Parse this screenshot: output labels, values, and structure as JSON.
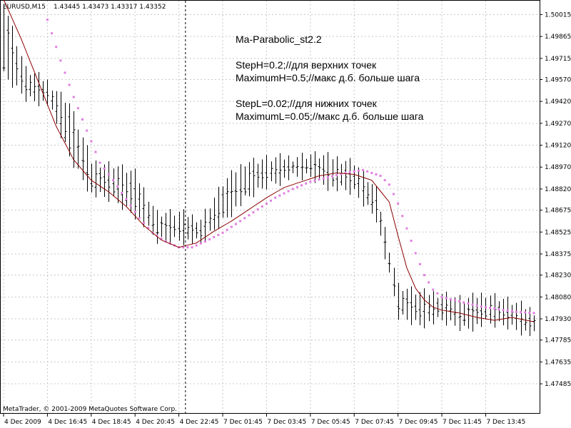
{
  "header": {
    "symbol": "EURUSD,M15",
    "ohlc": "1.43445 1.43473 1.43317 1.43352"
  },
  "copyright": "MetaTrader, © 2001-2009 MetaQuotes Software Corp.",
  "annotation": {
    "title": "Ma-Parabolic_st2.2",
    "lines": [
      "StepH=0.2;//для верхних точек",
      "MaximumH=0.5;//макс д.б. больше шага",
      "",
      "StepL=0.02;//для нижних точек",
      "MaximumL=0.05;//макс д.б. больше шага"
    ]
  },
  "colors": {
    "background": "#ffffff",
    "grid": "#c8c8c8",
    "bars": "#000000",
    "ma_line": "#8b0000",
    "parabolic_dots": "#e07ee0",
    "separator": "#000000"
  },
  "chart_data": {
    "type": "line",
    "ylim": [
      1.4728,
      1.5011
    ],
    "y_ticks": [
      "1.50015",
      "1.49865",
      "1.49715",
      "1.49570",
      "1.49420",
      "1.49270",
      "1.49120",
      "1.48970",
      "1.48820",
      "1.48675",
      "1.48525",
      "1.48375",
      "1.48230",
      "1.48080",
      "1.47930",
      "1.47785",
      "1.47635",
      "1.47485"
    ],
    "x_tick_labels": [
      "4 Dec 2009",
      "4 Dec 16:45",
      "4 Dec 18:45",
      "4 Dec 20:45",
      "4 Dec 22:45",
      "7 Dec 01:45",
      "7 Dec 03:45",
      "7 Dec 05:45",
      "7 Dec 07:45",
      "7 Dec 09:45",
      "7 Dec 11:45",
      "7 Dec 13:45"
    ],
    "x_tick_bar_index": [
      0,
      10,
      20,
      30,
      40,
      50,
      60,
      70,
      80,
      90,
      100,
      110
    ],
    "day_separator_bar_index": 41.5,
    "bar_count": 122,
    "bar_keys": [
      [
        0,
        1.4965,
        1.5005
      ],
      [
        5,
        1.495,
        1.4958
      ],
      [
        10,
        1.4946,
        1.495
      ],
      [
        15,
        1.491,
        1.4935
      ],
      [
        20,
        1.4884,
        1.4895
      ],
      [
        25,
        1.488,
        1.4893
      ],
      [
        30,
        1.487,
        1.4887
      ],
      [
        35,
        1.4852,
        1.486
      ],
      [
        40,
        1.4853,
        1.486
      ],
      [
        45,
        1.485,
        1.4856
      ],
      [
        50,
        1.4866,
        1.488
      ],
      [
        55,
        1.488,
        1.4895
      ],
      [
        60,
        1.489,
        1.4897
      ],
      [
        65,
        1.4895,
        1.4898
      ],
      [
        70,
        1.4896,
        1.49
      ],
      [
        75,
        1.4888,
        1.4898
      ],
      [
        80,
        1.4885,
        1.4895
      ],
      [
        85,
        1.4868,
        1.4875
      ],
      [
        90,
        1.48,
        1.481
      ],
      [
        95,
        1.4795,
        1.4805
      ],
      [
        100,
        1.4797,
        1.4805
      ],
      [
        105,
        1.4792,
        1.48
      ],
      [
        110,
        1.4795,
        1.4805
      ],
      [
        115,
        1.4794,
        1.48
      ],
      [
        121,
        1.4787,
        1.4793
      ]
    ],
    "series": [
      {
        "values": [
          [
            0,
            1.5012
          ],
          [
            4,
            1.4985
          ],
          [
            8,
            1.4955
          ],
          [
            12,
            1.4925
          ],
          [
            16,
            1.4902
          ],
          [
            20,
            1.4888
          ],
          [
            24,
            1.488
          ],
          [
            28,
            1.487
          ],
          [
            32,
            1.4857
          ],
          [
            36,
            1.4847
          ],
          [
            40,
            1.4842
          ],
          [
            44,
            1.4845
          ],
          [
            48,
            1.4853
          ],
          [
            52,
            1.486
          ],
          [
            56,
            1.4868
          ],
          [
            60,
            1.4876
          ],
          [
            64,
            1.4883
          ],
          [
            68,
            1.4887
          ],
          [
            72,
            1.4891
          ],
          [
            76,
            1.4893
          ],
          [
            80,
            1.4892
          ],
          [
            84,
            1.4888
          ],
          [
            88,
            1.4873
          ],
          [
            90,
            1.485
          ],
          [
            92,
            1.4828
          ],
          [
            94,
            1.4814
          ],
          [
            96,
            1.4806
          ],
          [
            98,
            1.4801
          ],
          [
            100,
            1.4799
          ],
          [
            104,
            1.4797
          ],
          [
            108,
            1.4794
          ],
          [
            112,
            1.4792
          ],
          [
            116,
            1.4794
          ],
          [
            121,
            1.4791
          ]
        ]
      },
      {
        "values": [
          [
            10,
            1.4998
          ],
          [
            13,
            1.497
          ],
          [
            16,
            1.4945
          ],
          [
            19,
            1.4922
          ],
          [
            22,
            1.49
          ],
          [
            25,
            1.4888
          ],
          [
            28,
            1.4875
          ],
          [
            31,
            1.4862
          ],
          [
            34,
            1.4852
          ],
          [
            37,
            1.4846
          ],
          [
            40,
            1.4842
          ],
          [
            43,
            1.4842
          ],
          [
            46,
            1.4846
          ],
          [
            50,
            1.4852
          ],
          [
            54,
            1.486
          ],
          [
            58,
            1.4868
          ],
          [
            62,
            1.4876
          ],
          [
            66,
            1.4882
          ],
          [
            70,
            1.4887
          ],
          [
            74,
            1.489
          ],
          [
            78,
            1.4893
          ],
          [
            82,
            1.4895
          ],
          [
            86,
            1.4891
          ],
          [
            88,
            1.4885
          ],
          [
            90,
            1.4872
          ],
          [
            92,
            1.4855
          ],
          [
            94,
            1.4838
          ],
          [
            96,
            1.4823
          ],
          [
            98,
            1.4813
          ],
          [
            100,
            1.4808
          ],
          [
            104,
            1.4805
          ],
          [
            108,
            1.4802
          ],
          [
            112,
            1.48
          ],
          [
            116,
            1.4798
          ],
          [
            121,
            1.4797
          ]
        ]
      }
    ]
  }
}
